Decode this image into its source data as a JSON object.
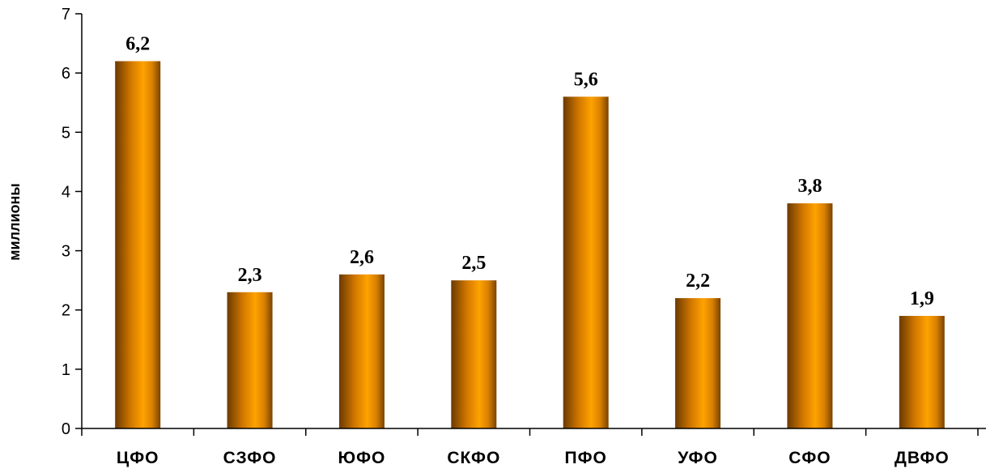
{
  "chart_data": {
    "type": "bar",
    "title": "",
    "xlabel": "",
    "ylabel": "миллионы",
    "categories": [
      "ЦФО",
      "СЗФО",
      "ЮФО",
      "СКФО",
      "ПФО",
      "УФО",
      "СФО",
      "ДВФО"
    ],
    "values": [
      6.2,
      2.3,
      2.6,
      2.5,
      5.6,
      2.2,
      3.8,
      1.9
    ],
    "data_labels": [
      "6,2",
      "2,3",
      "2,6",
      "2,5",
      "5,6",
      "2,2",
      "3,8",
      "1,9"
    ],
    "yticks": [
      "0",
      "1",
      "2",
      "3",
      "4",
      "5",
      "6",
      "7"
    ],
    "ylim": [
      0,
      7
    ],
    "grid": false,
    "legend": "none",
    "bar_color_dark": "#6b3a00",
    "bar_color_light": "#ffa200"
  }
}
